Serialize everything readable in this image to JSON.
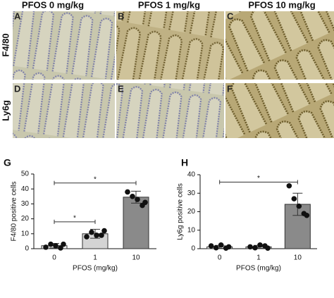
{
  "images": {
    "columns": [
      "PFOS 0 mg/kg",
      "PFOS 1 mg/kg",
      "PFOS 10 mg/kg"
    ],
    "rows": [
      "F4/80",
      "Ly6g"
    ],
    "panels": [
      "A",
      "B",
      "C",
      "D",
      "E",
      "F"
    ]
  },
  "chart_data": [
    {
      "type": "bar",
      "label": "G",
      "xlabel": "PFOS (mg/kg)",
      "ylabel": "F4/80 positive cells",
      "categories": [
        "0",
        "1",
        "10"
      ],
      "values": [
        2,
        10,
        34.5
      ],
      "errors": [
        1.5,
        3,
        4
      ],
      "points": [
        [
          1,
          3,
          2,
          0.5,
          3
        ],
        [
          8,
          11,
          9,
          9,
          12
        ],
        [
          38,
          35,
          33,
          29,
          31
        ]
      ],
      "colors": [
        "#f2f2f2",
        "#d4d4d4",
        "#8a8a8a"
      ],
      "ylim": [
        0,
        50
      ],
      "yticks": [
        0,
        10,
        20,
        30,
        40,
        50
      ],
      "brackets": [
        {
          "from": "0",
          "to": "1",
          "y": 18,
          "label": "*"
        },
        {
          "from": "0",
          "to": "10",
          "y": 44,
          "label": "*"
        }
      ]
    },
    {
      "type": "bar",
      "label": "H",
      "xlabel": "PFOS (mg/kg)",
      "ylabel": "Ly6g positive cells",
      "categories": [
        "0",
        "1",
        "10"
      ],
      "values": [
        1,
        1,
        24
      ],
      "errors": [
        0.8,
        0.8,
        6
      ],
      "points": [
        [
          1.5,
          0.5,
          2,
          0.3,
          1
        ],
        [
          1,
          0.5,
          2,
          1.5,
          0.3
        ],
        [
          34,
          27,
          23,
          19,
          18
        ]
      ],
      "colors": [
        "#f2f2f2",
        "#d4d4d4",
        "#8a8a8a"
      ],
      "ylim": [
        0,
        40
      ],
      "yticks": [
        0,
        10,
        20,
        30,
        40
      ],
      "brackets": [
        {
          "from": "0",
          "to": "10",
          "y": 36,
          "label": "*"
        }
      ]
    }
  ]
}
